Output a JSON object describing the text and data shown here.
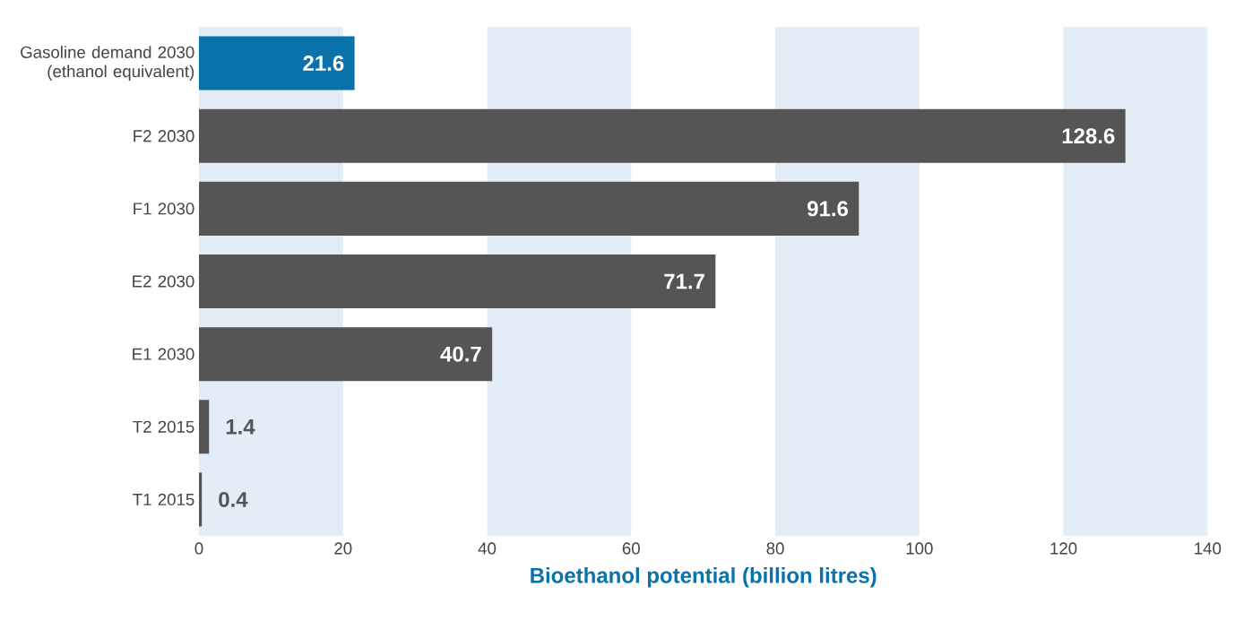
{
  "chart_data": {
    "type": "bar",
    "orientation": "horizontal",
    "xlabel": "Bioethanol potential (billion litres)",
    "categories": [
      "Gasoline demand 2030 (ethanol equivalent)",
      "F2 2030",
      "F1 2030",
      "E2 2030",
      "E1 2030",
      "T2 2015",
      "T1 2015"
    ],
    "values": [
      21.6,
      128.6,
      91.6,
      71.7,
      40.7,
      1.4,
      0.4
    ],
    "colors": [
      "#0a72aa",
      "#555555",
      "#555555",
      "#555555",
      "#555555",
      "#555555",
      "#555555"
    ],
    "xlim": [
      0,
      140
    ],
    "xticks": [
      0,
      20,
      40,
      60,
      80,
      100,
      120,
      140
    ],
    "bands": [
      {
        "axis": "x",
        "from": 0,
        "to": 20,
        "color": "#e3edf7"
      },
      {
        "axis": "x",
        "from": 40,
        "to": 60,
        "color": "#e3edf7"
      },
      {
        "axis": "x",
        "from": 80,
        "to": 100,
        "color": "#e3edf7"
      },
      {
        "axis": "x",
        "from": 120,
        "to": 140,
        "color": "#e3edf7"
      }
    ],
    "data_labels": true
  }
}
